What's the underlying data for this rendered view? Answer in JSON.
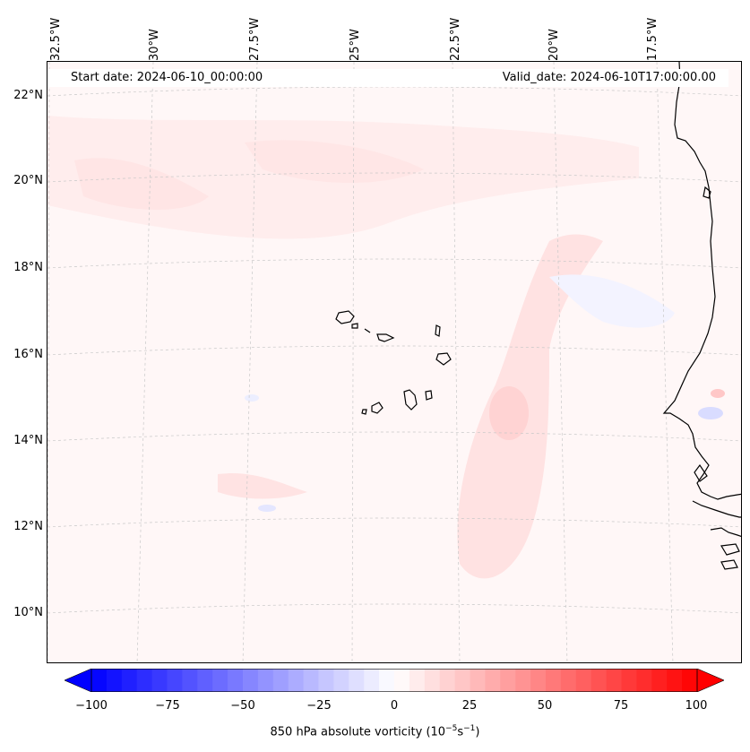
{
  "map": {
    "start_date": "Start date: 2024-06-10_00:00:00",
    "valid_date": "Valid_date: 2024-06-10T17:00:00.00",
    "lon_labels": [
      "32.5°W",
      "30°W",
      "27.5°W",
      "25°W",
      "22.5°W",
      "20°W",
      "17.5°W"
    ],
    "lat_labels": [
      "22°N",
      "20°N",
      "18°N",
      "16°N",
      "14°N",
      "12°N",
      "10°N"
    ],
    "variable": "850 hPa absolute vorticity",
    "unit_base": "(10",
    "unit_exp1": "−5",
    "unit_mid": "s",
    "unit_exp2": "−1",
    "unit_close": ")"
  },
  "colorbar": {
    "min": -100,
    "max": 100,
    "ticks": [
      "−100",
      "−75",
      "−50",
      "−25",
      "0",
      "25",
      "50",
      "75",
      "100"
    ],
    "colormap": "bwr",
    "low_color": "#0000ff",
    "mid_color": "#ffffff",
    "high_color": "#ff0000"
  }
}
